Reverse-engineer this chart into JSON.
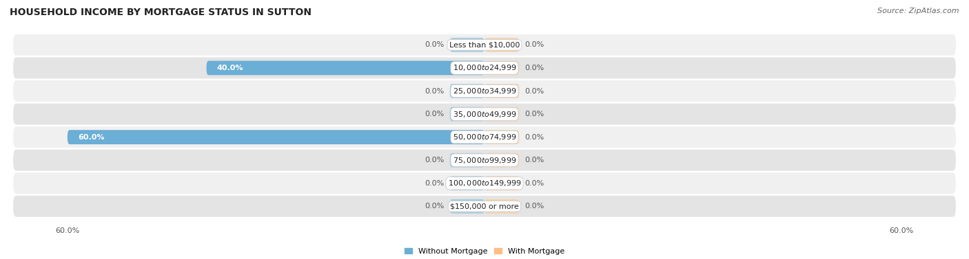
{
  "title": "HOUSEHOLD INCOME BY MORTGAGE STATUS IN SUTTON",
  "source": "Source: ZipAtlas.com",
  "categories": [
    "Less than $10,000",
    "$10,000 to $24,999",
    "$25,000 to $34,999",
    "$35,000 to $49,999",
    "$50,000 to $74,999",
    "$75,000 to $99,999",
    "$100,000 to $149,999",
    "$150,000 or more"
  ],
  "without_mortgage": [
    0.0,
    40.0,
    0.0,
    0.0,
    60.0,
    0.0,
    0.0,
    0.0
  ],
  "with_mortgage": [
    0.0,
    0.0,
    0.0,
    0.0,
    0.0,
    0.0,
    0.0,
    0.0
  ],
  "max_val": 60.0,
  "color_without": "#6BAED6",
  "color_with": "#FDBE85",
  "color_without_stub": "#A8CEDE",
  "color_with_stub": "#F5D4B0",
  "bg_row_light": "#F0F0F0",
  "bg_row_dark": "#E4E4E4",
  "stub_size": 5.0,
  "title_fontsize": 10,
  "source_fontsize": 8,
  "bar_label_fontsize": 8,
  "category_fontsize": 8,
  "axis_label_fontsize": 8,
  "legend_fontsize": 8
}
